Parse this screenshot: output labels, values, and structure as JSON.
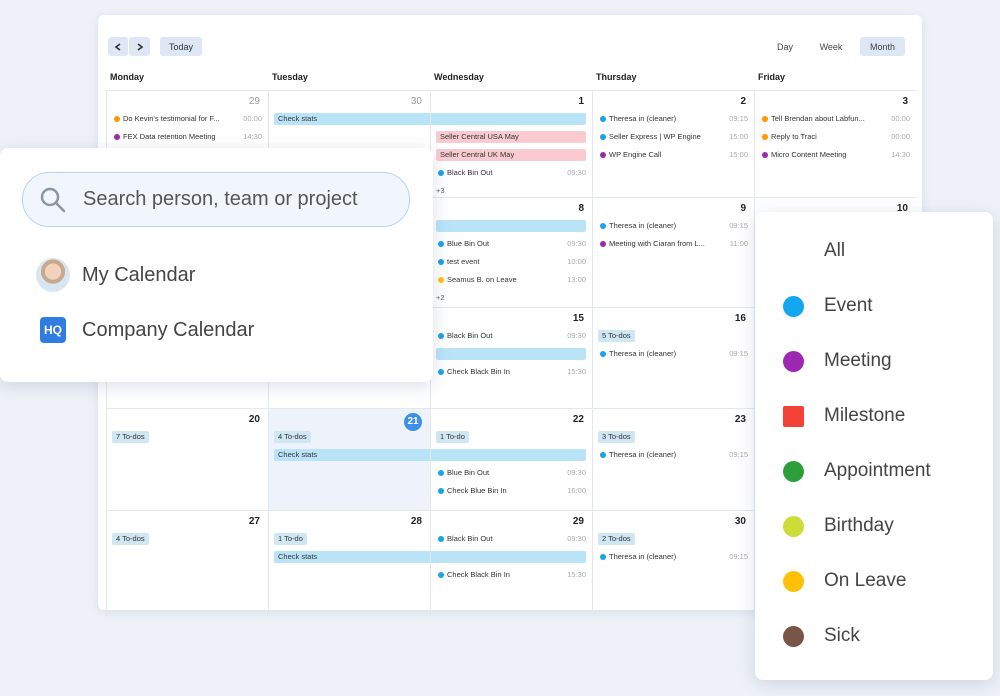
{
  "toolbar": {
    "today": "Today",
    "views": [
      "Day",
      "Week",
      "Month"
    ],
    "active_view": "Month"
  },
  "weekdays": [
    "Monday",
    "Tuesday",
    "Wednesday",
    "Thursday",
    "Friday"
  ],
  "weeks": [
    [
      {
        "date": 29,
        "muted": true,
        "items": [
          {
            "type": "event",
            "color": "#ff9800",
            "text": "Do Kevin's testimonial for F...",
            "time": "00:00"
          },
          {
            "type": "event",
            "color": "#9c27b0",
            "text": "FEX Data retention Meeting",
            "time": "14:30"
          }
        ]
      },
      {
        "date": 30,
        "muted": true,
        "items": [
          {
            "type": "bar",
            "color": "#b9e4f8",
            "text": "Check stats",
            "days": 2
          }
        ]
      },
      {
        "date": 1,
        "items": [
          {
            "type": "bar",
            "color": "#f9cbd1",
            "text": "Seller Central USA May",
            "days": 1
          },
          {
            "type": "bar",
            "color": "#f9cbd1",
            "text": "Seller Central UK May",
            "days": 1
          },
          {
            "type": "event",
            "color": "#1aa3e8",
            "text": "Black Bin Out",
            "time": "09:30"
          },
          {
            "type": "more",
            "text": "+3"
          }
        ]
      },
      {
        "date": 2,
        "items": [
          {
            "type": "event",
            "color": "#1aa3e8",
            "text": "Theresa in (cleaner)",
            "time": "09:15"
          },
          {
            "type": "event",
            "color": "#1aa3e8",
            "text": "Seller Express | WP Engine",
            "time": "15:00"
          },
          {
            "type": "event",
            "color": "#9c27b0",
            "text": "WP Engine Call",
            "time": "15:00"
          }
        ]
      },
      {
        "date": 3,
        "items": [
          {
            "type": "event",
            "color": "#ff9800",
            "text": "Tell Brendan about Labfun...",
            "time": "00:00"
          },
          {
            "type": "event",
            "color": "#ff9800",
            "text": "Reply to Traci",
            "time": "00:00"
          },
          {
            "type": "event",
            "color": "#9c27b0",
            "text": "Micro Content Meeting",
            "time": "14:30"
          }
        ]
      }
    ],
    [
      {
        "items": []
      },
      {
        "items": []
      },
      {
        "date": 8,
        "items": [
          {
            "type": "bar",
            "color": "#b9e4f8",
            "days": 1
          },
          {
            "type": "event",
            "color": "#1aa3e8",
            "text": "Blue Bin Out",
            "time": "09:30"
          },
          {
            "type": "event",
            "color": "#1aa3e8",
            "text": "test event",
            "time": "10:00"
          },
          {
            "type": "event",
            "color": "#ffc107",
            "text": "Seamus B. on Leave",
            "time": "13:00"
          },
          {
            "type": "more",
            "text": "+2"
          }
        ]
      },
      {
        "date": 9,
        "items": [
          {
            "type": "event",
            "color": "#1aa3e8",
            "text": "Theresa in (cleaner)",
            "time": "09:15"
          },
          {
            "type": "event",
            "color": "#9c27b0",
            "text": "Meeting with Ciaran from L...",
            "time": "11:00"
          }
        ]
      },
      {
        "date": 10,
        "items": []
      }
    ],
    [
      {
        "items": []
      },
      {
        "items": []
      },
      {
        "date": 15,
        "items": [
          {
            "type": "event",
            "color": "#1aa3e8",
            "text": "Black Bin Out",
            "time": "09:30"
          },
          {
            "type": "bar",
            "color": "#b9e4f8",
            "days": 1
          },
          {
            "type": "event",
            "color": "#1aa3e8",
            "text": "Check Black Bin In",
            "time": "15:30"
          }
        ]
      },
      {
        "date": 16,
        "items": [
          {
            "type": "todo",
            "text": "5 To-dos"
          },
          {
            "type": "event",
            "color": "#1aa3e8",
            "text": "Theresa in (cleaner)",
            "time": "09:15"
          }
        ]
      },
      {
        "items": []
      }
    ],
    [
      {
        "date": 20,
        "items": [
          {
            "type": "todo",
            "text": "7 To-dos"
          }
        ]
      },
      {
        "date": 21,
        "today": true,
        "items": [
          {
            "type": "todo",
            "text": "4 To-dos"
          },
          {
            "type": "bar",
            "color": "#b9e4f8",
            "text": "Check stats",
            "days": 2
          }
        ]
      },
      {
        "date": 22,
        "items": [
          {
            "type": "todo",
            "text": "1 To-do"
          },
          {
            "type": "event",
            "color": "#1aa3e8",
            "text": "Blue Bin Out",
            "time": "09:30"
          },
          {
            "type": "event",
            "color": "#1aa3e8",
            "text": "Check Blue Bin In",
            "time": "16:00"
          }
        ]
      },
      {
        "date": 23,
        "items": [
          {
            "type": "todo",
            "text": "3 To-dos"
          },
          {
            "type": "event",
            "color": "#1aa3e8",
            "text": "Theresa in (cleaner)",
            "time": "09:15"
          }
        ]
      },
      {
        "items": []
      }
    ],
    [
      {
        "date": 27,
        "items": [
          {
            "type": "todo",
            "text": "4 To-dos"
          }
        ]
      },
      {
        "date": 28,
        "items": [
          {
            "type": "todo",
            "text": "1 To-do"
          },
          {
            "type": "bar",
            "color": "#b9e4f8",
            "text": "Check stats",
            "days": 2
          }
        ]
      },
      {
        "date": 29,
        "items": [
          {
            "type": "event",
            "color": "#1aa3e8",
            "text": "Black Bin Out",
            "time": "09:30"
          },
          {
            "type": "event",
            "color": "#1aa3e8",
            "text": "Check Black Bin In",
            "time": "15:30"
          }
        ]
      },
      {
        "date": 30,
        "items": [
          {
            "type": "todo",
            "text": "2 To-dos"
          },
          {
            "type": "event",
            "color": "#1aa3e8",
            "text": "Theresa in (cleaner)",
            "time": "09:15"
          }
        ]
      },
      {
        "items": []
      }
    ]
  ],
  "search": {
    "placeholder": "Search person, team or project",
    "options": [
      {
        "label": "My Calendar",
        "icon": "avatar"
      },
      {
        "label": "Company Calendar",
        "icon": "hq",
        "icon_text": "HQ"
      }
    ]
  },
  "legend": [
    {
      "label": "All"
    },
    {
      "label": "Event",
      "color": "#12a7ee",
      "shape": "circle"
    },
    {
      "label": "Meeting",
      "color": "#9c27b0",
      "shape": "circle"
    },
    {
      "label": "Milestone",
      "color": "#f44336",
      "shape": "square"
    },
    {
      "label": "Appointment",
      "color": "#2e9e3a",
      "shape": "circle"
    },
    {
      "label": "Birthday",
      "color": "#cddc39",
      "shape": "circle"
    },
    {
      "label": "On Leave",
      "color": "#ffc107",
      "shape": "circle"
    },
    {
      "label": "Sick",
      "color": "#795548",
      "shape": "circle"
    }
  ]
}
